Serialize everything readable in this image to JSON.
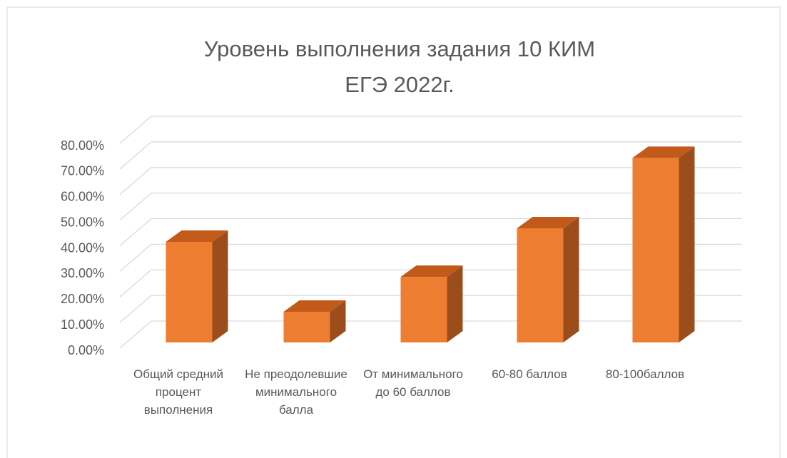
{
  "chart_data": {
    "type": "bar3d",
    "title": "Уровень выполнения задания 10 КИМ ЕГЭ 2022г.",
    "categories": [
      "Общий средний процент выполнения",
      "Не преодолевшие минимального балла",
      "От минимального до 60 баллов",
      "60-80 баллов",
      "80-100баллов"
    ],
    "values": [
      39.3,
      12.0,
      25.6,
      44.6,
      72.1
    ],
    "color": "#ed7d31",
    "ylim": [
      0,
      80
    ],
    "yticks": [
      {
        "value": 0,
        "label": "0.00%"
      },
      {
        "value": 10,
        "label": "10.00%"
      },
      {
        "value": 20,
        "label": "20.00%"
      },
      {
        "value": 30,
        "label": "30.00%"
      },
      {
        "value": 40,
        "label": "40.00%"
      },
      {
        "value": 50,
        "label": "50.00%"
      },
      {
        "value": 60,
        "label": "60.00%"
      },
      {
        "value": 70,
        "label": "70.00%"
      },
      {
        "value": 80,
        "label": "80.00%"
      }
    ],
    "grid": true
  }
}
